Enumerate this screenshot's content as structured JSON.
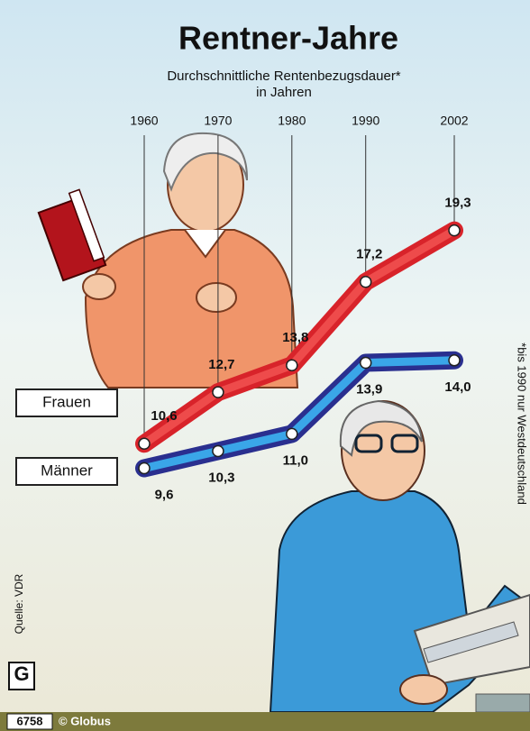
{
  "chart_data": {
    "type": "line",
    "title": "Rentner-Jahre",
    "subtitle": "Durchschnittliche Rentenbezugsdauer*",
    "y_label": "in Jahren",
    "x": [
      1960,
      1970,
      1980,
      1990,
      2002
    ],
    "xlim": [
      1960,
      2002
    ],
    "ylim": [
      8,
      23
    ],
    "series": [
      {
        "name": "Frauen",
        "color": "#d8232a",
        "values": [
          10.6,
          12.7,
          13.8,
          17.2,
          19.3
        ],
        "value_labels": [
          "10,6",
          "12,7",
          "13,8",
          "17,2",
          "19,3"
        ]
      },
      {
        "name": "Männer",
        "color": "#2a2f8f",
        "values": [
          9.6,
          10.3,
          11.0,
          13.9,
          14.0
        ],
        "value_labels": [
          "9,6",
          "10,3",
          "11,0",
          "13,9",
          "14,0"
        ]
      }
    ],
    "footnote": "*bis 1990 nur Westdeutschland",
    "source": "Quelle: VDR",
    "graphic_number": "6758",
    "publisher": "© Globus",
    "logo": "G"
  }
}
